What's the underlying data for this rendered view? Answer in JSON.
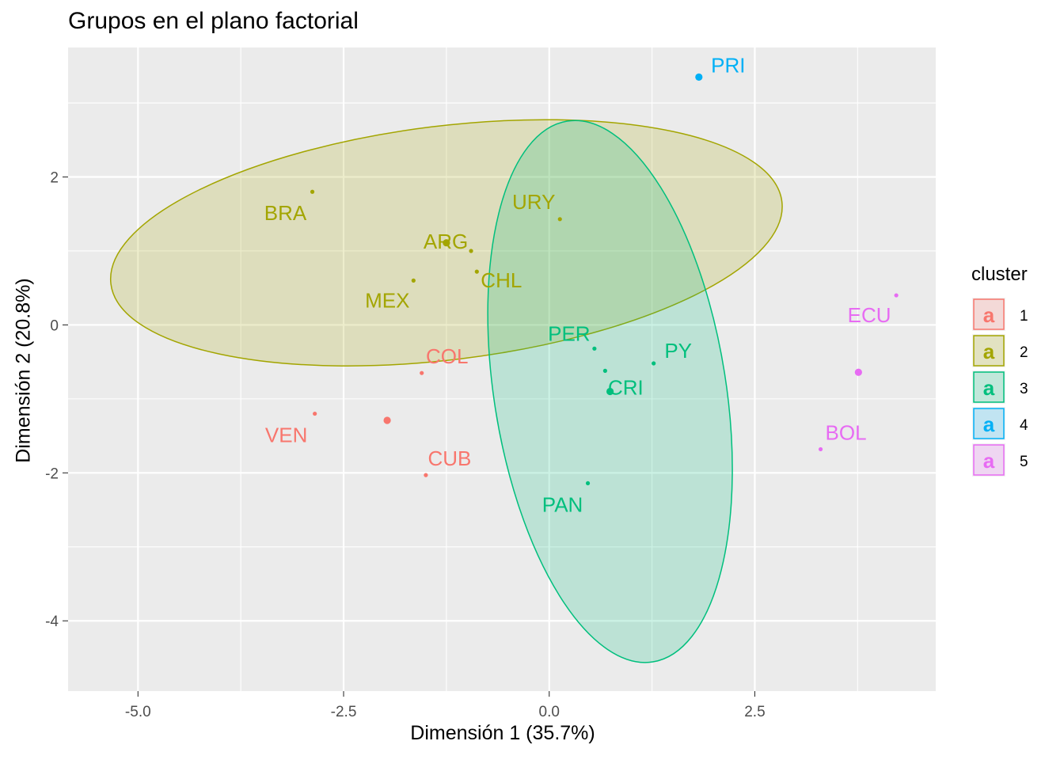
{
  "chart_data": {
    "type": "scatter",
    "title": "Grupos en el plano factorial",
    "xlabel": "Dimensión 1 (35.7%)",
    "ylabel": "Dimensión 2 (20.8%)",
    "xlim": [
      -5.85,
      4.7
    ],
    "ylim": [
      -4.95,
      3.75
    ],
    "xticks": [
      -5.0,
      -2.5,
      0.0,
      2.5
    ],
    "xtick_labels": [
      "-5.0",
      "-2.5",
      "0.0",
      "2.5"
    ],
    "yticks": [
      -4,
      -2,
      0,
      2
    ],
    "ytick_labels": [
      "-4",
      "-2",
      "0",
      "2"
    ],
    "grid": true,
    "legend": {
      "title": "cluster",
      "placement": "right",
      "glyph": "a",
      "entries": [
        "1",
        "2",
        "3",
        "4",
        "5"
      ]
    },
    "colors": {
      "1": "#F8766D",
      "2": "#A3A500",
      "3": "#00BF7D",
      "4": "#00B0F6",
      "5": "#E76BF3"
    },
    "points": [
      {
        "label": "VEN",
        "x": -2.85,
        "y": -1.2,
        "cluster": "1"
      },
      {
        "label": "COL",
        "x": -1.55,
        "y": -0.65,
        "cluster": "1"
      },
      {
        "label": "CUB",
        "x": -1.5,
        "y": -2.03,
        "cluster": "1"
      },
      {
        "label": "BRA",
        "x": -2.88,
        "y": 1.8,
        "cluster": "2"
      },
      {
        "label": "ARG",
        "x": -0.95,
        "y": 1.0,
        "cluster": "2"
      },
      {
        "label": "URY",
        "x": 0.13,
        "y": 1.43,
        "cluster": "2"
      },
      {
        "label": "MEX",
        "x": -1.65,
        "y": 0.6,
        "cluster": "2"
      },
      {
        "label": "CHL",
        "x": -0.88,
        "y": 0.72,
        "cluster": "2"
      },
      {
        "label": "PER",
        "x": 0.55,
        "y": -0.32,
        "cluster": "3"
      },
      {
        "label": "PY",
        "x": 1.27,
        "y": -0.52,
        "cluster": "3"
      },
      {
        "label": "CRI",
        "x": 0.68,
        "y": -0.62,
        "cluster": "3"
      },
      {
        "label": "PAN",
        "x": 0.47,
        "y": -2.14,
        "cluster": "3"
      },
      {
        "label": "PRI",
        "x": 1.82,
        "y": 3.35,
        "cluster": "4"
      },
      {
        "label": "ECU",
        "x": 4.22,
        "y": 0.4,
        "cluster": "5"
      },
      {
        "label": "BOL",
        "x": 3.3,
        "y": -1.68,
        "cluster": "5"
      }
    ],
    "centroids": [
      {
        "cluster": "1",
        "x": -1.97,
        "y": -1.29
      },
      {
        "cluster": "2",
        "x": -1.25,
        "y": 1.11
      },
      {
        "cluster": "3",
        "x": 0.74,
        "y": -0.9
      },
      {
        "cluster": "4",
        "x": 1.82,
        "y": 3.35
      },
      {
        "cluster": "5",
        "x": 3.76,
        "y": -0.64
      }
    ],
    "ellipses": [
      {
        "cluster": "2",
        "cx": -1.25,
        "cy": 1.11,
        "rx": 4.11,
        "ry": 1.58,
        "angle_deg": -7
      },
      {
        "cluster": "3",
        "cx": 0.74,
        "cy": -0.9,
        "rx": 1.41,
        "ry": 3.7,
        "angle_deg": -9
      }
    ]
  }
}
